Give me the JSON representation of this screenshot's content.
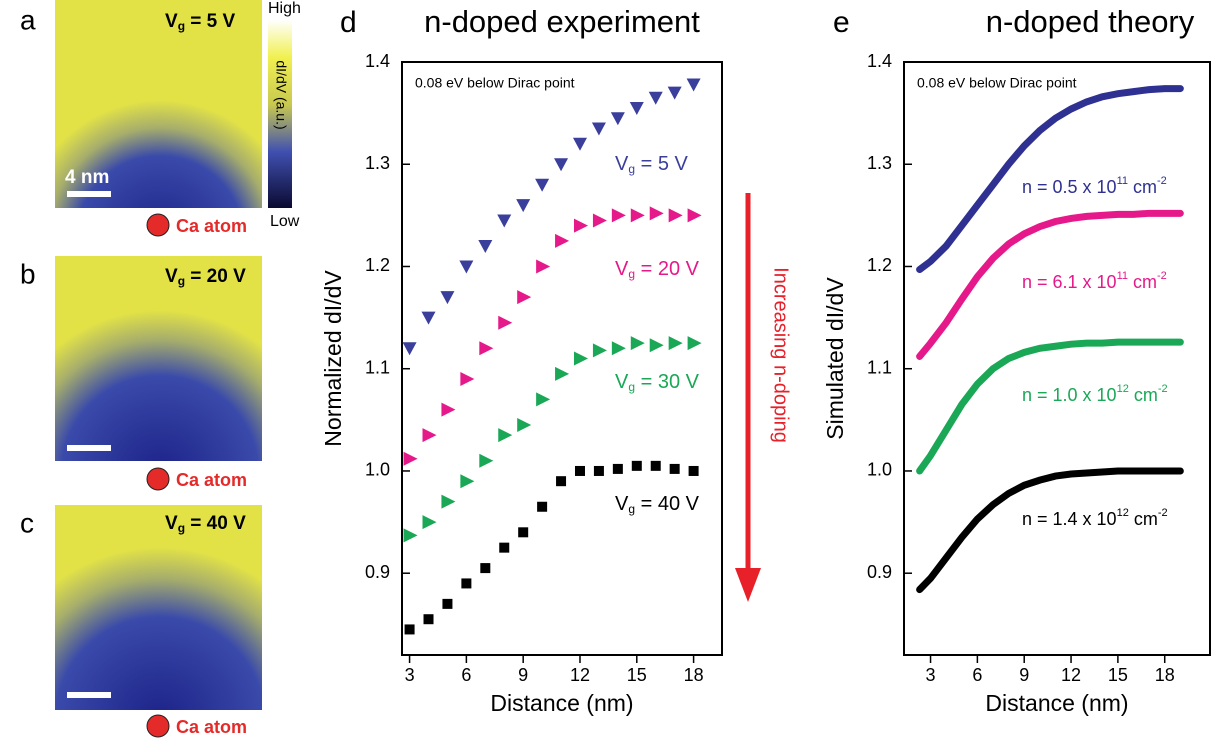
{
  "panels": [
    {
      "label": "a",
      "gate": [
        {
          "text": "V"
        },
        {
          "text": "g",
          "style": "sub"
        },
        {
          "text": " = 5 V"
        }
      ],
      "scale_bar": "4 nm",
      "marker_label": "Ca atom"
    },
    {
      "label": "b",
      "gate": [
        {
          "text": "V"
        },
        {
          "text": "g",
          "style": "sub"
        },
        {
          "text": " = 20 V"
        }
      ],
      "marker_label": "Ca atom"
    },
    {
      "label": "c",
      "gate": [
        {
          "text": "V"
        },
        {
          "text": "g",
          "style": "sub"
        },
        {
          "text": " = 40 V"
        }
      ],
      "marker_label": "Ca atom"
    }
  ],
  "colorbar": {
    "high": "High",
    "low": "Low",
    "label": "dI/dV (a.u.)"
  },
  "chart_data": [
    {
      "type": "scatter",
      "panel_label": "d",
      "title": "n-doped experiment",
      "annotation": "0.08 eV below Dirac point",
      "arrow_label": "Increasing n-doping",
      "arrow_color": "#e8202a",
      "xlabel": "Distance (nm)",
      "ylabel": "Normalized dI/dV",
      "xlim": [
        2.6,
        19.5
      ],
      "ylim": [
        0.82,
        1.4
      ],
      "xticks": [
        3,
        6,
        9,
        12,
        15,
        18
      ],
      "yticks": [
        0.9,
        {
          "value": 1,
          "label": "1.0"
        },
        1.1,
        1.2,
        1.3,
        1.4
      ],
      "x": [
        3,
        4,
        5,
        6,
        7,
        8,
        9,
        10,
        11,
        12,
        13,
        14,
        15,
        16,
        17,
        18
      ],
      "series": [
        {
          "label": [
            {
              "text": "V"
            },
            {
              "text": "g",
              "style": "sub"
            },
            {
              "text": " = 5 V"
            }
          ],
          "color": "#3b3f9c",
          "marker": "triangle-down",
          "values": [
            1.12,
            1.15,
            1.17,
            1.2,
            1.22,
            1.245,
            1.26,
            1.28,
            1.3,
            1.32,
            1.335,
            1.345,
            1.355,
            1.365,
            1.37,
            1.378
          ]
        },
        {
          "label": [
            {
              "text": "V"
            },
            {
              "text": "g",
              "style": "sub"
            },
            {
              "text": " = 20 V"
            }
          ],
          "color": "#e6198a",
          "marker": "triangle-right",
          "values": [
            1.012,
            1.035,
            1.06,
            1.09,
            1.12,
            1.145,
            1.17,
            1.2,
            1.225,
            1.24,
            1.245,
            1.25,
            1.25,
            1.252,
            1.25,
            1.25
          ]
        },
        {
          "label": [
            {
              "text": "V"
            },
            {
              "text": "g",
              "style": "sub"
            },
            {
              "text": " = 30 V"
            }
          ],
          "color": "#1aa856",
          "marker": "triangle-right",
          "values": [
            0.937,
            0.95,
            0.97,
            0.99,
            1.01,
            1.035,
            1.045,
            1.07,
            1.095,
            1.11,
            1.118,
            1.12,
            1.125,
            1.123,
            1.125,
            1.125
          ]
        },
        {
          "label": [
            {
              "text": "V"
            },
            {
              "text": "g",
              "style": "sub"
            },
            {
              "text": " = 40 V"
            }
          ],
          "color": "#000000",
          "marker": "square",
          "values": [
            0.845,
            0.855,
            0.87,
            0.89,
            0.905,
            0.925,
            0.94,
            0.965,
            0.99,
            1.0,
            1.0,
            1.002,
            1.005,
            1.005,
            1.002,
            1.0
          ]
        }
      ]
    },
    {
      "type": "line",
      "panel_label": "e",
      "title": "n-doped theory",
      "annotation": "0.08 eV below Dirac point",
      "xlabel": "Distance (nm)",
      "ylabel": "Simulated dI/dV",
      "xlim": [
        1.3,
        20.9
      ],
      "ylim": [
        0.82,
        1.4
      ],
      "xticks": [
        3,
        6,
        9,
        12,
        15,
        18
      ],
      "yticks": [
        0.9,
        {
          "value": 1,
          "label": "1.0"
        },
        1.1,
        1.2,
        1.3,
        1.4
      ],
      "x": [
        2.3,
        3,
        4,
        5,
        6,
        7,
        8,
        9,
        10,
        11,
        12,
        13,
        14,
        15,
        16,
        17,
        18,
        19
      ],
      "series": [
        {
          "label": [
            {
              "text": "n = 0.5 x 10"
            },
            {
              "text": "11",
              "style": "sup"
            },
            {
              "text": " cm"
            },
            {
              "text": "-2",
              "style": "sup"
            }
          ],
          "color": "#2e3192",
          "values": [
            1.197,
            1.205,
            1.22,
            1.24,
            1.26,
            1.28,
            1.3,
            1.318,
            1.333,
            1.345,
            1.354,
            1.361,
            1.366,
            1.369,
            1.371,
            1.373,
            1.374,
            1.374
          ]
        },
        {
          "label": [
            {
              "text": "n = 6.1 x 10"
            },
            {
              "text": "11",
              "style": "sup"
            },
            {
              "text": " cm"
            },
            {
              "text": "-2",
              "style": "sup"
            }
          ],
          "color": "#e6198a",
          "values": [
            1.112,
            1.125,
            1.145,
            1.168,
            1.19,
            1.208,
            1.222,
            1.232,
            1.239,
            1.244,
            1.247,
            1.249,
            1.25,
            1.251,
            1.251,
            1.252,
            1.252,
            1.252
          ]
        },
        {
          "label": [
            {
              "text": "n = 1.0 x 10"
            },
            {
              "text": "12",
              "style": "sup"
            },
            {
              "text": " cm"
            },
            {
              "text": "-2",
              "style": "sup"
            }
          ],
          "color": "#1aa856",
          "values": [
            1.0,
            1.015,
            1.04,
            1.065,
            1.085,
            1.1,
            1.11,
            1.116,
            1.12,
            1.122,
            1.124,
            1.125,
            1.125,
            1.126,
            1.126,
            1.126,
            1.126,
            1.126
          ]
        },
        {
          "label": [
            {
              "text": "n = 1.4 x 10"
            },
            {
              "text": "12",
              "style": "sup"
            },
            {
              "text": " cm"
            },
            {
              "text": "-2",
              "style": "sup"
            }
          ],
          "color": "#000000",
          "values": [
            0.884,
            0.895,
            0.915,
            0.935,
            0.953,
            0.967,
            0.978,
            0.986,
            0.991,
            0.995,
            0.997,
            0.998,
            0.999,
            1.0,
            1.0,
            1.0,
            1.0,
            1.0
          ]
        }
      ]
    }
  ]
}
